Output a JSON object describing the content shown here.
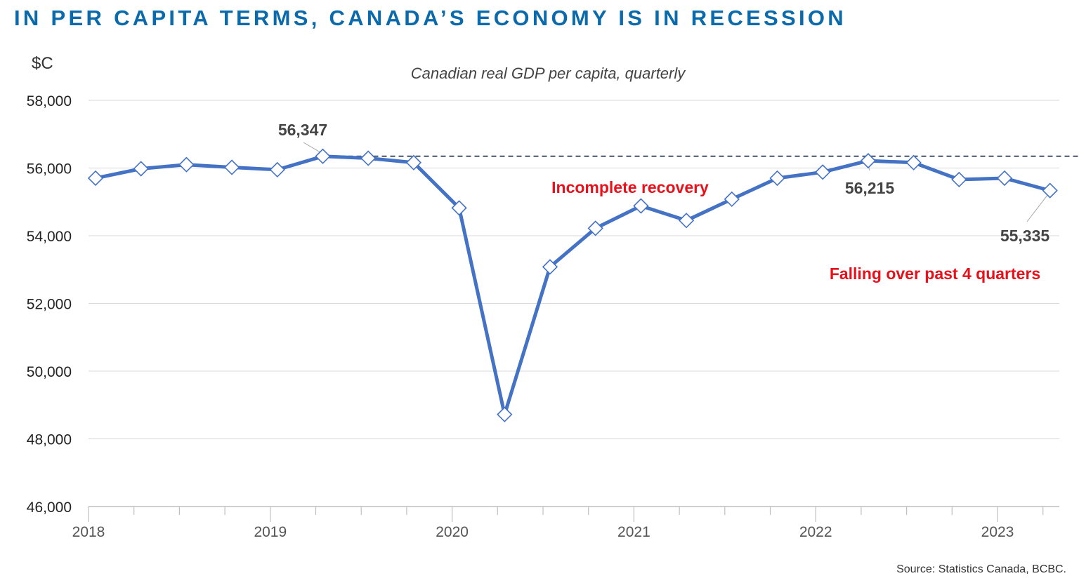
{
  "header": {
    "title": "IN PER CAPITA TERMS, CANADA’S ECONOMY IS IN RECESSION"
  },
  "colors": {
    "title": "#0a6aab",
    "series_line": "#4472c4",
    "reference_line": "#44546a",
    "annotation_red": "#e8101a",
    "callout_text": "#444444"
  },
  "chart_data": {
    "type": "line",
    "title": "",
    "subtitle": "Canadian real GDP per capita, quarterly",
    "ylabel": "$C",
    "xlabel": "",
    "ylim": [
      46000,
      58000
    ],
    "yticks": [
      46000,
      48000,
      50000,
      52000,
      54000,
      56000,
      58000
    ],
    "ytick_labels": [
      "46,000",
      "48,000",
      "50,000",
      "52,000",
      "54,000",
      "56,000",
      "58,000"
    ],
    "xtick_labels": [
      "2018",
      "2019",
      "2020",
      "2021",
      "2022",
      "2023"
    ],
    "grid": true,
    "legend": "none",
    "marker": "diamond",
    "x": [
      "2018Q1",
      "2018Q2",
      "2018Q3",
      "2018Q4",
      "2019Q1",
      "2019Q2",
      "2019Q3",
      "2019Q4",
      "2020Q1",
      "2020Q2",
      "2020Q3",
      "2020Q4",
      "2021Q1",
      "2021Q2",
      "2021Q3",
      "2021Q4",
      "2022Q1",
      "2022Q2",
      "2022Q3",
      "2022Q4",
      "2023Q1",
      "2023Q2"
    ],
    "values": [
      55700,
      55980,
      56100,
      56020,
      55950,
      56347,
      56290,
      56160,
      54820,
      48720,
      53080,
      54220,
      54880,
      54450,
      55080,
      55700,
      55880,
      56215,
      56160,
      55660,
      55700,
      55335
    ],
    "reference_line": {
      "value": 56347,
      "from": "2019Q2",
      "style": "dashed"
    },
    "annotations": {
      "peak_value": "56,347",
      "recovery_value": "56,215",
      "latest_value": "55,335",
      "incomplete": "Incomplete recovery",
      "falling": "Falling over past 4 quarters"
    },
    "source": "Source: Statistics Canada, BCBC."
  }
}
